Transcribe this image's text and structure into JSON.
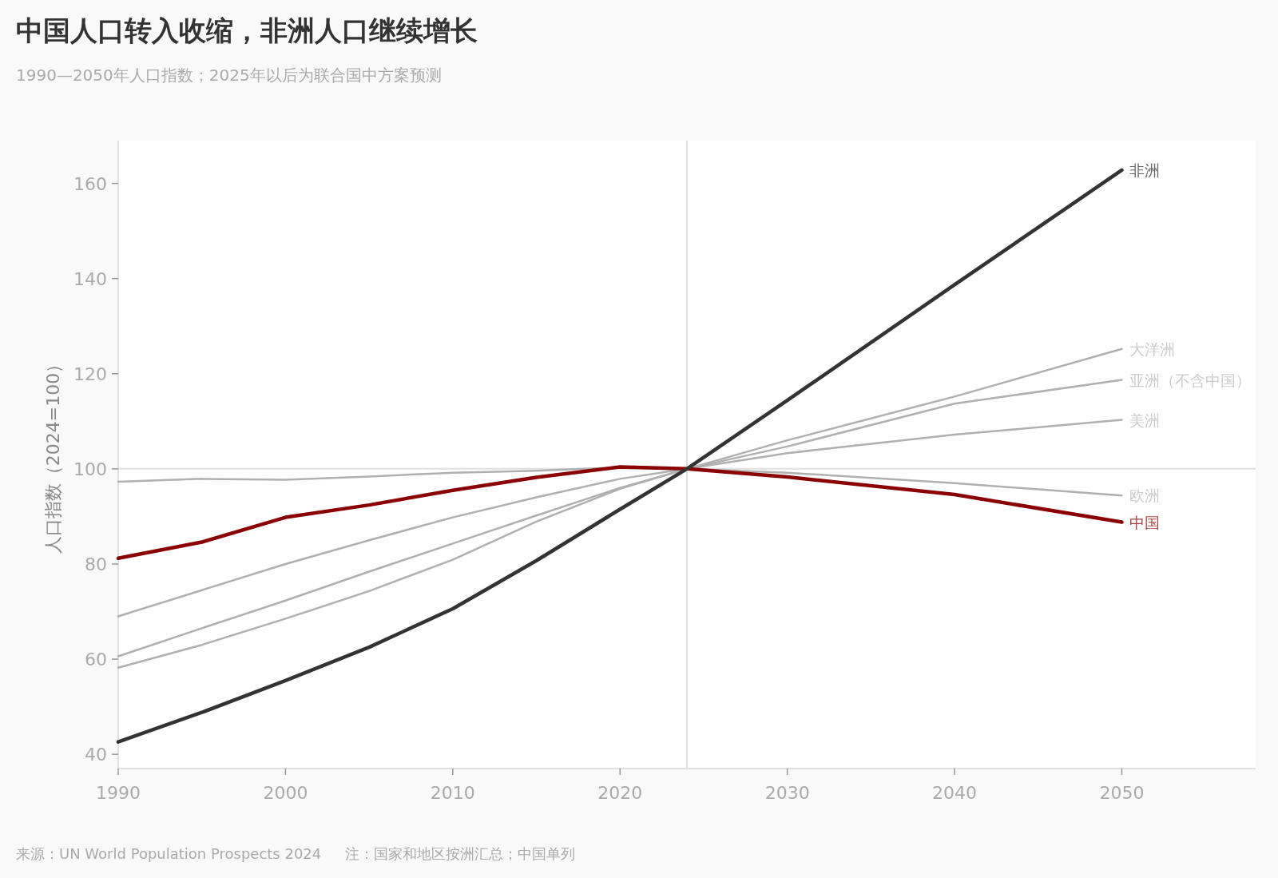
{
  "chart_data": {
    "type": "line",
    "title": "中国人口转入收缩，非洲人口继续增长",
    "subtitle": "1990—2050年人口指数；2025年以后为联合国中方案预测",
    "ylabel": "人口指数（2024=100）",
    "annotations": [
      "来源：UN World Population Prospects 2024",
      "注：国家和地区按洲汇总；中国单列"
    ],
    "x": [
      1990,
      1995,
      2000,
      2005,
      2010,
      2015,
      2020,
      2024,
      2030,
      2040,
      2050
    ],
    "series": [
      {
        "name": "欧洲",
        "color": "#b0b0b0",
        "values": [
          97.3,
          97.9,
          97.7,
          98.4,
          99.2,
          99.6,
          100.3,
          100,
          99.2,
          97.0,
          94.4
        ]
      },
      {
        "name": "美洲",
        "color": "#b0b0b0",
        "values": [
          69.0,
          74.5,
          80.0,
          85.0,
          89.8,
          94.0,
          97.9,
          100,
          103.3,
          107.2,
          110.3
        ]
      },
      {
        "name": "亚洲（不含中国）",
        "color": "#b0b0b0",
        "values": [
          60.6,
          66.5,
          72.3,
          78.4,
          84.3,
          90.2,
          96.0,
          100,
          104.7,
          113.7,
          118.7
        ]
      },
      {
        "name": "大洋洲",
        "color": "#b0b0b0",
        "values": [
          58.2,
          63.0,
          68.5,
          74.3,
          80.9,
          88.9,
          95.8,
          100,
          106.0,
          115.2,
          125.2
        ]
      },
      {
        "name": "中国",
        "color": "#8b0000",
        "values": [
          81.2,
          84.6,
          89.8,
          92.4,
          95.5,
          98.2,
          100.4,
          100,
          98.3,
          94.6,
          88.8
        ]
      },
      {
        "name": "非洲",
        "color": "#333333",
        "values": [
          42.6,
          48.8,
          55.5,
          62.5,
          70.6,
          80.7,
          91.5,
          100,
          114.4,
          138.7,
          162.8
        ]
      }
    ],
    "xlim": [
      1990,
      2058
    ],
    "ylim": [
      37,
      169
    ],
    "xticks": [
      1990,
      2000,
      2010,
      2020,
      2030,
      2040,
      2050
    ],
    "yticks": [
      40,
      60,
      80,
      100,
      120,
      140,
      160
    ],
    "ref_lines": [
      {
        "axis": "x",
        "value": 2024,
        "color": "#e0e0e0"
      },
      {
        "axis": "y",
        "value": 100,
        "color": "#e0e0e0"
      }
    ],
    "grid": false,
    "legend": false
  }
}
